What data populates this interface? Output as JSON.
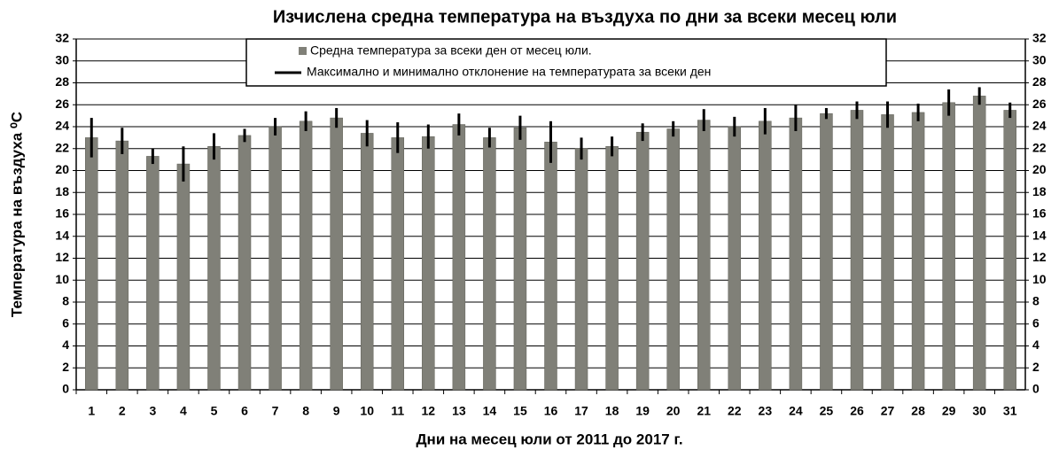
{
  "chart_data": {
    "type": "bar",
    "title": "Изчислена средна температура на въздуха по дни за всеки месец юли",
    "xlabel": "Дни на месец  юли от 2011 до 2017 г.",
    "ylabel": "Температура  на  въздуха  ⁰C",
    "categories": [
      "1",
      "2",
      "3",
      "4",
      "5",
      "6",
      "7",
      "8",
      "9",
      "10",
      "11",
      "12",
      "13",
      "14",
      "15",
      "16",
      "17",
      "18",
      "19",
      "20",
      "21",
      "22",
      "23",
      "24",
      "25",
      "26",
      "27",
      "28",
      "29",
      "30",
      "31"
    ],
    "series": [
      {
        "name": "Средна температура за всеки ден от месец  юли.",
        "color": "#808078",
        "values": [
          23.0,
          22.7,
          21.3,
          20.6,
          22.2,
          23.2,
          24.0,
          24.5,
          24.8,
          23.4,
          23.0,
          23.1,
          24.2,
          23.0,
          23.9,
          22.6,
          22.0,
          22.2,
          23.5,
          23.8,
          24.6,
          24.0,
          24.5,
          24.8,
          25.2,
          25.5,
          25.1,
          25.3,
          26.2,
          26.8,
          25.5
        ]
      }
    ],
    "error_bars": {
      "name": "Максимално и минимално отклонение на температурата за всеки ден",
      "color": "#000000",
      "values": [
        1.8,
        1.2,
        0.7,
        1.6,
        1.2,
        0.6,
        0.8,
        0.9,
        0.9,
        1.2,
        1.4,
        1.1,
        1.0,
        0.9,
        1.1,
        1.9,
        1.0,
        0.9,
        0.8,
        0.7,
        1.0,
        0.9,
        1.2,
        1.2,
        0.5,
        0.8,
        1.2,
        0.8,
        1.2,
        0.8,
        0.7
      ]
    },
    "ylim": [
      0,
      32
    ],
    "yticks": [
      0,
      2,
      4,
      6,
      8,
      10,
      12,
      14,
      16,
      18,
      20,
      22,
      24,
      26,
      28,
      30,
      32
    ],
    "grid": true
  }
}
